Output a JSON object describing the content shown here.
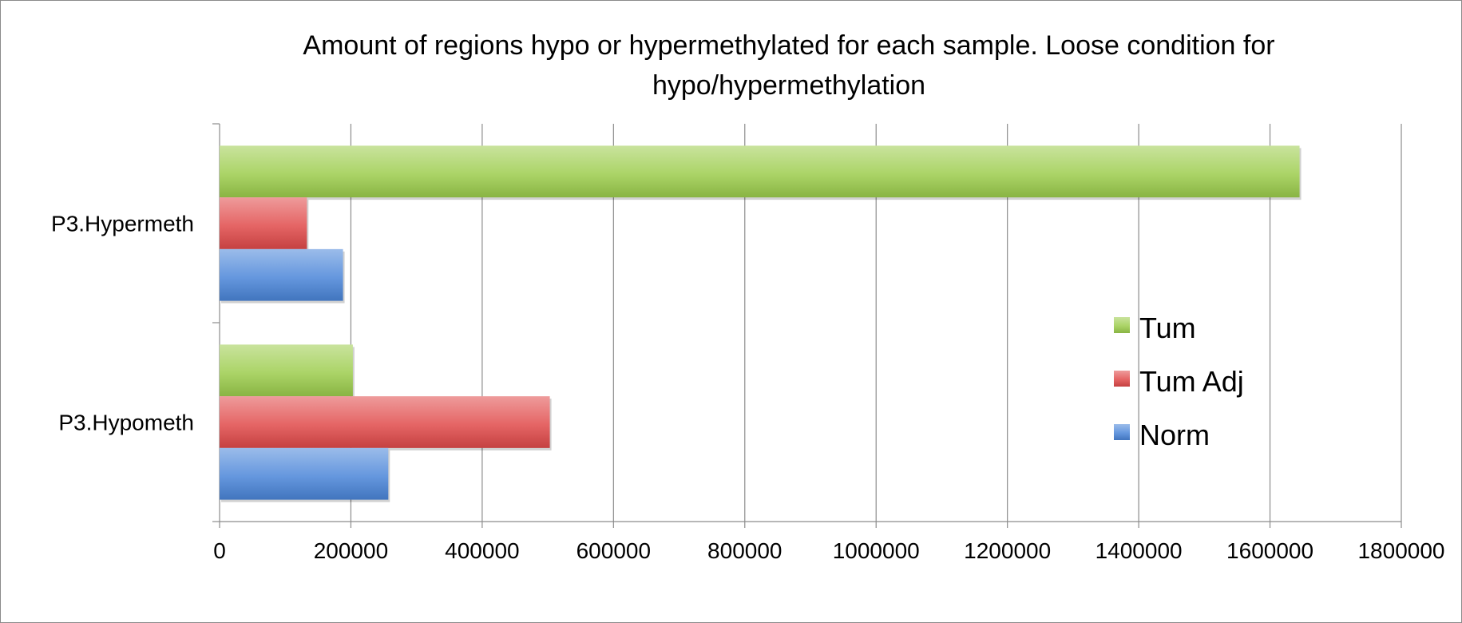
{
  "chart_data": {
    "type": "bar",
    "orientation": "horizontal",
    "title_line1": "Amount of regions hypo or hypermethylated for each sample. Loose condition for",
    "title_line2": "hypo/hypermethylation",
    "categories": [
      "P3.Hypermeth",
      "P3.Hypometh"
    ],
    "series": [
      {
        "name": "Tum",
        "values": [
          1645000,
          203000
        ],
        "color": "#9ccc4c"
      },
      {
        "name": "Tum Adj",
        "values": [
          133000,
          503000
        ],
        "color": "#e04a4a"
      },
      {
        "name": "Norm",
        "values": [
          188000,
          257000
        ],
        "color": "#4a85d8"
      }
    ],
    "xlim": [
      0,
      1800000
    ],
    "xticks": [
      "0",
      "200000",
      "400000",
      "600000",
      "800000",
      "1000000",
      "1200000",
      "1400000",
      "1600000",
      "1800000"
    ],
    "xlabel": "",
    "ylabel": "",
    "grid": true,
    "legend_position": "right"
  }
}
